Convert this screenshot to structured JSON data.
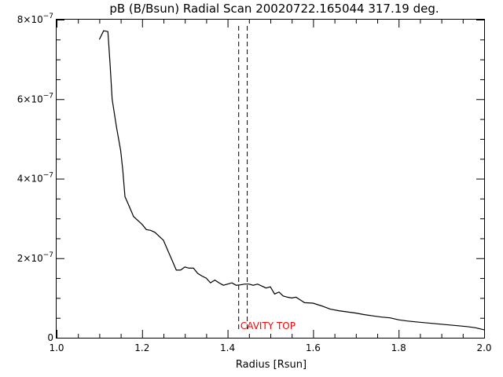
{
  "chart_data": {
    "type": "line",
    "title": "pB (B/Bsun) Radial Scan 20020722.165044 317.19 deg.",
    "xlabel": "Radius [Rsun]",
    "ylabel": "",
    "xlim": [
      1.0,
      2.0
    ],
    "ylim": [
      0,
      8e-07
    ],
    "grid": false,
    "x_ticks": [
      1.0,
      1.2,
      1.4,
      1.6,
      1.8,
      2.0
    ],
    "x_tick_labels": [
      "1.0",
      "1.2",
      "1.4",
      "1.6",
      "1.8",
      "2.0"
    ],
    "y_ticks": [
      0,
      2e-07,
      4e-07,
      6e-07,
      8e-07
    ],
    "y_tick_labels": [
      {
        "base": "0",
        "exp": ""
      },
      {
        "base": "2×10",
        "exp": "−7"
      },
      {
        "base": "4×10",
        "exp": "−7"
      },
      {
        "base": "6×10",
        "exp": "−7"
      },
      {
        "base": "8×10",
        "exp": "−7"
      }
    ],
    "line_color": "#000000",
    "series": [
      {
        "x": [
          1.1,
          1.11,
          1.12,
          1.125,
          1.13,
          1.14,
          1.15,
          1.155,
          1.16,
          1.17,
          1.18,
          1.19,
          1.2,
          1.21,
          1.22,
          1.23,
          1.24,
          1.25,
          1.26,
          1.27,
          1.28,
          1.29,
          1.3,
          1.31,
          1.32,
          1.33,
          1.34,
          1.35,
          1.36,
          1.37,
          1.38,
          1.39,
          1.4,
          1.41,
          1.42,
          1.43,
          1.44,
          1.45,
          1.46,
          1.47,
          1.48,
          1.49,
          1.5,
          1.51,
          1.52,
          1.53,
          1.54,
          1.55,
          1.56,
          1.57,
          1.58,
          1.6,
          1.62,
          1.64,
          1.66,
          1.68,
          1.7,
          1.72,
          1.74,
          1.76,
          1.78,
          1.8,
          1.82,
          1.84,
          1.86,
          1.88,
          1.9,
          1.92,
          1.94,
          1.96,
          1.98,
          2.0
        ],
        "y": [
          7.5e-07,
          7.72e-07,
          7.7e-07,
          6.9e-07,
          6e-07,
          5.3e-07,
          4.7e-07,
          4.2e-07,
          3.55e-07,
          3.3e-07,
          3.05e-07,
          2.95e-07,
          2.85e-07,
          2.72e-07,
          2.7e-07,
          2.65e-07,
          2.55e-07,
          2.45e-07,
          2.2e-07,
          1.95e-07,
          1.7e-07,
          1.7e-07,
          1.78e-07,
          1.75e-07,
          1.75e-07,
          1.62e-07,
          1.55e-07,
          1.5e-07,
          1.38e-07,
          1.45e-07,
          1.38e-07,
          1.32e-07,
          1.35e-07,
          1.38e-07,
          1.32e-07,
          1.33e-07,
          1.35e-07,
          1.35e-07,
          1.32e-07,
          1.35e-07,
          1.3e-07,
          1.25e-07,
          1.28e-07,
          1.1e-07,
          1.15e-07,
          1.05e-07,
          1.02e-07,
          1e-07,
          1.02e-07,
          9.5e-08,
          8.8e-08,
          8.7e-08,
          8e-08,
          7.2e-08,
          6.8e-08,
          6.5e-08,
          6.2e-08,
          5.8e-08,
          5.5e-08,
          5.2e-08,
          5e-08,
          4.5e-08,
          4.2e-08,
          4e-08,
          3.8e-08,
          3.6e-08,
          3.4e-08,
          3.2e-08,
          3e-08,
          2.8e-08,
          2.5e-08,
          2e-08
        ]
      }
    ],
    "vertical_lines": [
      {
        "x": 1.425,
        "style": "dashed"
      },
      {
        "x": 1.445,
        "style": "dashed"
      }
    ],
    "annotations": [
      {
        "text": "CAVITY TOP",
        "x": 1.43,
        "y": 3e-08,
        "color": "#ff0000"
      }
    ]
  }
}
